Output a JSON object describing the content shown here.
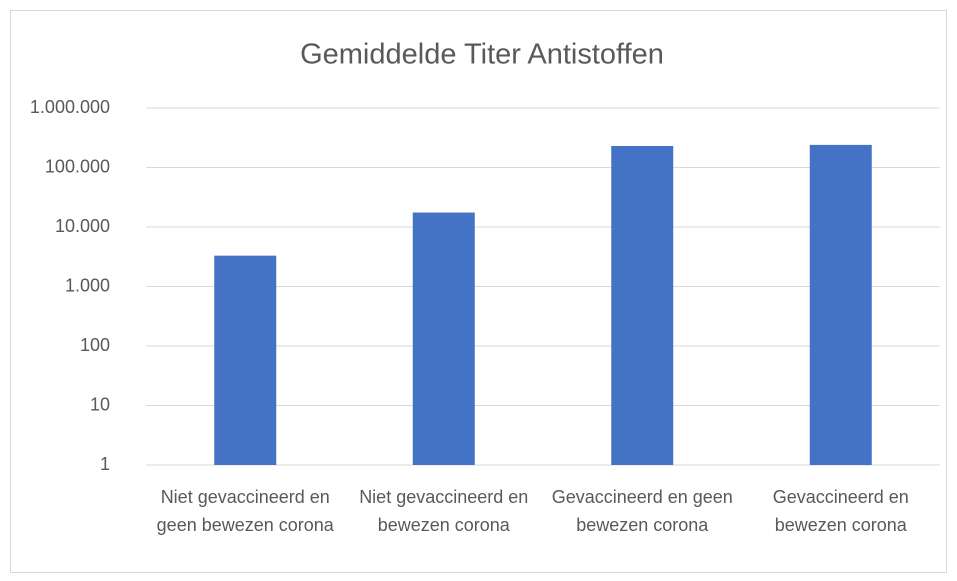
{
  "chart_data": {
    "type": "bar",
    "title": "Gemiddelde Titer Antistoffen",
    "categories": [
      "Niet gevaccineerd en geen bewezen corona",
      "Niet gevaccineerd en bewezen corona",
      "Gevaccineerd en geen bewezen corona",
      "Gevaccineerd en bewezen corona"
    ],
    "values": [
      3300,
      17500,
      230000,
      240000
    ],
    "color": "#4472c4",
    "log_scale": true,
    "ylim": [
      1,
      1000000
    ],
    "yticks": [
      1,
      10,
      100,
      {
        "value": 1000,
        "label": "1.000"
      },
      {
        "value": 10000,
        "label": "10.000"
      },
      {
        "value": 100000,
        "label": "100.000"
      },
      {
        "value": 1000000,
        "label": "1.000.000"
      }
    ],
    "grid": true
  }
}
